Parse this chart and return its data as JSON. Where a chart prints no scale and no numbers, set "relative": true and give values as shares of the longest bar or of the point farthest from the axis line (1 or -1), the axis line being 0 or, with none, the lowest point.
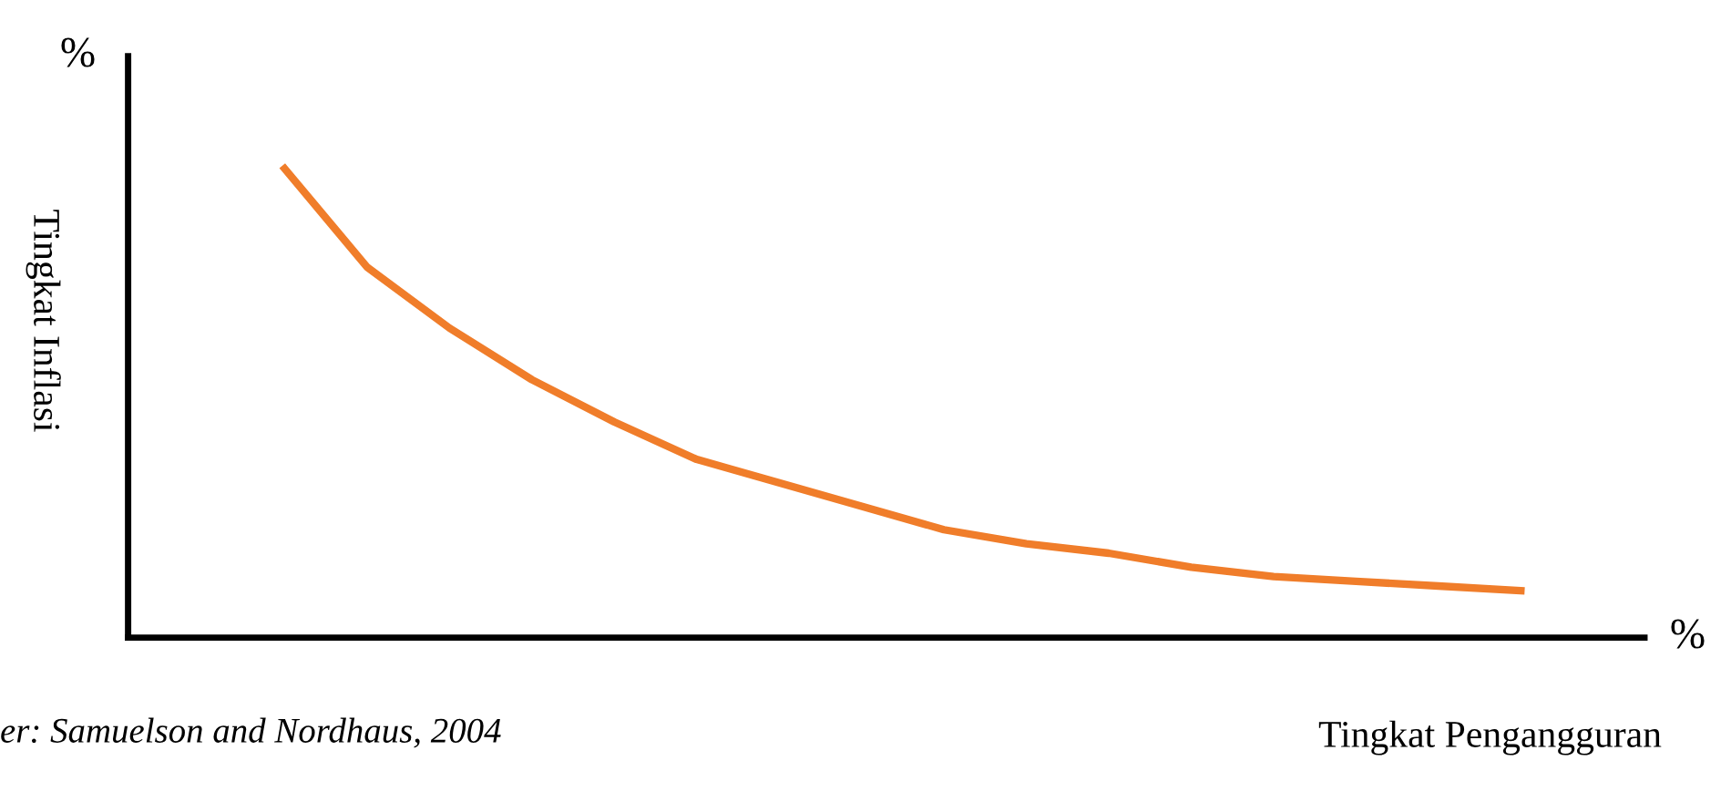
{
  "chart_data": {
    "type": "line",
    "relative": true,
    "categories": [
      null,
      null,
      null,
      null,
      null,
      null,
      null,
      null,
      null,
      null,
      null,
      null,
      null,
      null,
      null,
      null
    ],
    "series": [
      {
        "color": "#f07d2a",
        "values": [
          1,
          0.79,
          0.66,
          0.55,
          0.46,
          0.38,
          0.33,
          0.28,
          0.23,
          0.2,
          0.18,
          0.15,
          0.13,
          0.12,
          0.11,
          0.1
        ]
      }
    ],
    "xlabel": "Tingkat Pengangguran",
    "ylabel": "Tingkat Inflasi",
    "annotations": [
      "%",
      "%",
      "er: Samuelson and Nordhaus, 2004"
    ],
    "legend": false,
    "marker": "none",
    "line_style": "solid"
  }
}
